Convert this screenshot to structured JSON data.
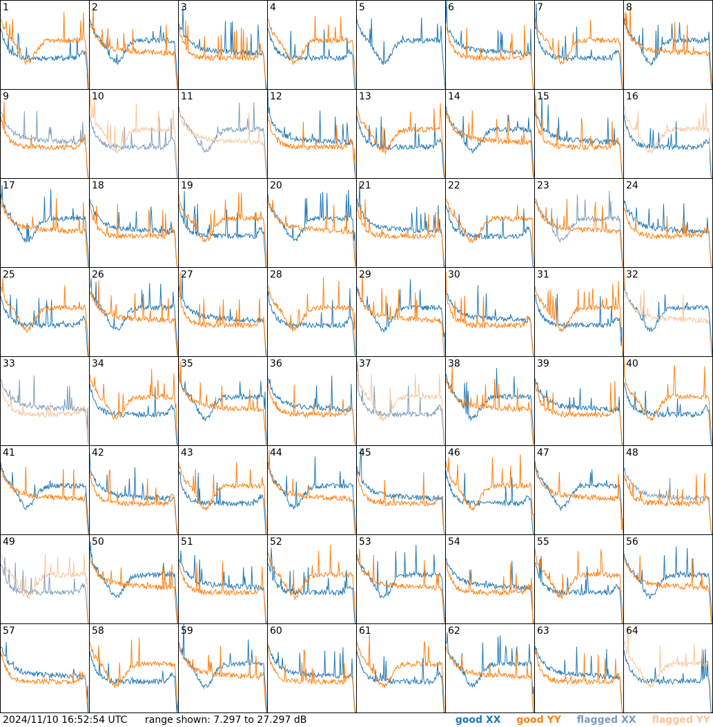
{
  "chart_data": {
    "type": "line",
    "layout": "small-multiples 8x8",
    "panel_labels": [
      "1",
      "2",
      "3",
      "4",
      "5",
      "6",
      "7",
      "8",
      "9",
      "10",
      "11",
      "12",
      "13",
      "14",
      "15",
      "16",
      "17",
      "18",
      "19",
      "20",
      "21",
      "22",
      "23",
      "24",
      "25",
      "26",
      "27",
      "28",
      "29",
      "30",
      "31",
      "32",
      "33",
      "34",
      "35",
      "36",
      "37",
      "38",
      "39",
      "40",
      "41",
      "42",
      "43",
      "44",
      "45",
      "46",
      "47",
      "48",
      "49",
      "50",
      "51",
      "52",
      "53",
      "54",
      "55",
      "56",
      "57",
      "58",
      "59",
      "60",
      "61",
      "62",
      "63",
      "64"
    ],
    "ylim": [
      7.297,
      27.297
    ],
    "yunit": "dB",
    "legend": [
      {
        "key": "good_xx",
        "name": "good XX",
        "color": "#1f77b4"
      },
      {
        "key": "good_yy",
        "name": "good YY",
        "color": "#ff7f0e"
      },
      {
        "key": "flagged_xx",
        "name": "flagged XX",
        "color": "#7a9cbd"
      },
      {
        "key": "flagged_yy",
        "name": "flagged YY",
        "color": "#f9c59a"
      }
    ],
    "panel_status": {
      "xx": [
        "g",
        "g",
        "g",
        "g",
        "g",
        "g",
        "g",
        "g",
        "f",
        "f",
        "f",
        "g",
        "g",
        "g",
        "g",
        "g",
        "g",
        "g",
        "g",
        "g",
        "g",
        "g",
        "f",
        "g",
        "g",
        "g",
        "g",
        "g",
        "g",
        "g",
        "g",
        "g",
        "f",
        "g",
        "g",
        "g",
        "f",
        "g",
        "g",
        "g",
        "g",
        "g",
        "g",
        "g",
        "g",
        "g",
        "g",
        "f",
        "f",
        "g",
        "g",
        "g",
        "g",
        "g",
        "g",
        "g",
        "g",
        "g",
        "g",
        "g",
        "g",
        "g",
        "g",
        "g"
      ],
      "yy": [
        "g",
        "g",
        "g",
        "g",
        "n",
        "g",
        "g",
        "g",
        "g",
        "f",
        "f",
        "g",
        "g",
        "g",
        "g",
        "f",
        "g",
        "g",
        "g",
        "g",
        "g",
        "g",
        "g",
        "g",
        "g",
        "g",
        "g",
        "g",
        "g",
        "g",
        "g",
        "f",
        "f",
        "g",
        "g",
        "g",
        "f",
        "g",
        "g",
        "g",
        "g",
        "g",
        "g",
        "g",
        "g",
        "g",
        "g",
        "g",
        "f",
        "g",
        "g",
        "g",
        "g",
        "g",
        "g",
        "g",
        "g",
        "g",
        "g",
        "g",
        "g",
        "g",
        "g",
        "f"
      ]
    }
  },
  "footer": {
    "timestamp": "2024/11/10 16:52:54 UTC",
    "range_text": "range shown: 7.297 to 27.297 dB"
  }
}
